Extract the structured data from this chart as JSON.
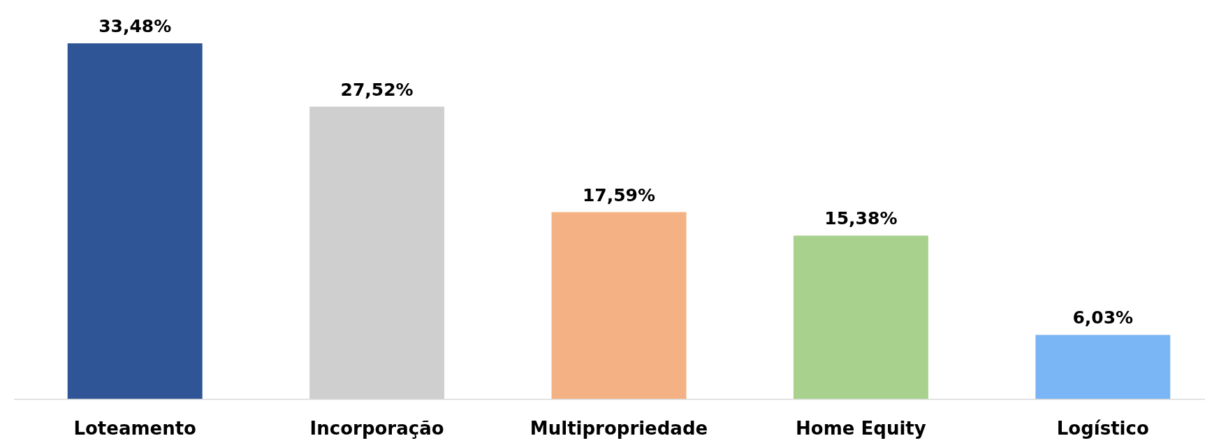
{
  "chart_data": {
    "type": "bar",
    "categories": [
      "Loteamento",
      "Incorporação",
      "Multipropriedade",
      "Home Equity",
      "Logístico"
    ],
    "values": [
      33.48,
      27.52,
      17.59,
      15.38,
      6.03
    ],
    "colors": [
      "#2f5597",
      "#d0cfd0",
      "#f4b183",
      "#a9d18e",
      "#7ab6f5"
    ],
    "value_labels": [
      "33,48%",
      "27,52%",
      "17,59%",
      "15,38%",
      "6,03%"
    ]
  }
}
